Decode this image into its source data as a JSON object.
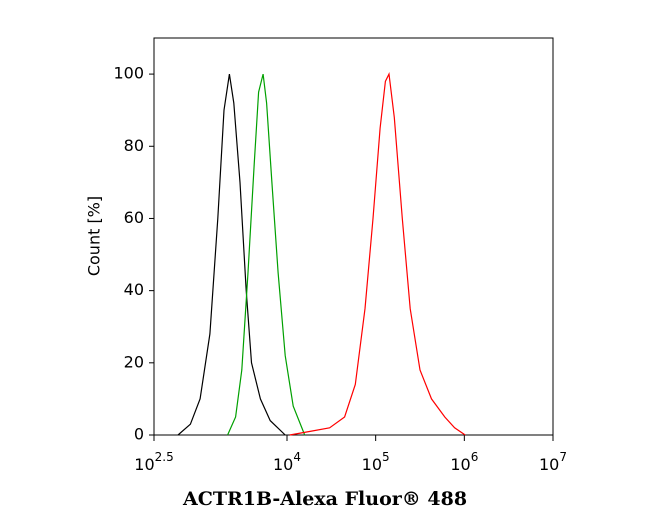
{
  "chart_data": {
    "type": "line",
    "log_x": true,
    "x_label": "ACTR1B-Alexa Fluor® 488",
    "y_label": "Count [%]",
    "xlim": [
      316.2278,
      10000000
    ],
    "ylim": [
      0,
      110
    ],
    "xticks": [
      {
        "value": 316.2278,
        "label": "10",
        "exponent": "2.5"
      },
      {
        "value": 10000,
        "label": "10",
        "exponent": "4"
      },
      {
        "value": 100000,
        "label": "10",
        "exponent": "5"
      },
      {
        "value": 1000000,
        "label": "10",
        "exponent": "6"
      },
      {
        "value": 10000000,
        "label": "10",
        "exponent": "7"
      }
    ],
    "yticks": [
      0,
      20,
      40,
      60,
      80,
      100
    ],
    "series": [
      {
        "color": "#000000",
        "x": [
          589,
          813,
          1047,
          1349,
          1660,
          1950,
          2239,
          2512,
          2951,
          3467,
          3981,
          5012,
          6457,
          9550
        ],
        "values": [
          0,
          3,
          10,
          28,
          60,
          90,
          100,
          92,
          70,
          40,
          20,
          10,
          4,
          0
        ]
      },
      {
        "color": "#00a000",
        "x": [
          2138,
          2630,
          3090,
          3631,
          4266,
          4786,
          5370,
          5888,
          6761,
          7943,
          9550,
          11749,
          15849
        ],
        "values": [
          0,
          5,
          18,
          45,
          75,
          95,
          100,
          92,
          70,
          45,
          22,
          8,
          0
        ]
      },
      {
        "color": "#ff0000",
        "x": [
          10715,
          18197,
          30200,
          44668,
          58884,
          75858,
          93325,
          112202,
          128825,
          141254,
          162181,
          199526,
          245471,
          316228,
          426580,
          602560,
          776247,
          1023293
        ],
        "values": [
          0,
          1,
          2,
          5,
          14,
          35,
          60,
          85,
          98,
          100,
          88,
          60,
          35,
          18,
          10,
          5,
          2,
          0
        ]
      }
    ]
  }
}
